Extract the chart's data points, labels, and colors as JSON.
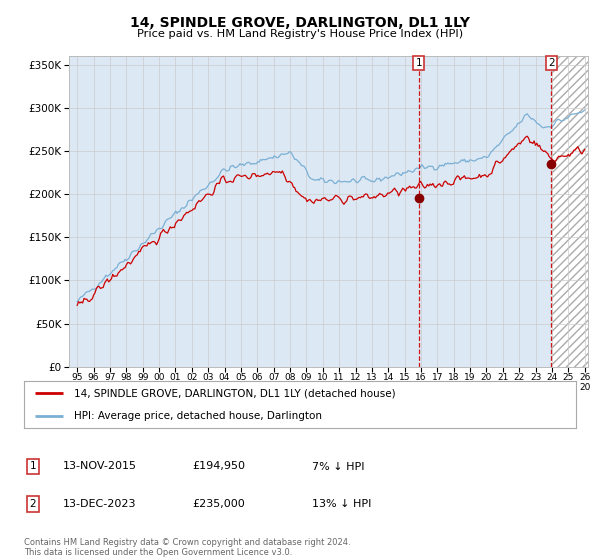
{
  "title": "14, SPINDLE GROVE, DARLINGTON, DL1 1LY",
  "subtitle": "Price paid vs. HM Land Registry's House Price Index (HPI)",
  "ylim": [
    0,
    360000
  ],
  "yticks": [
    0,
    50000,
    100000,
    150000,
    200000,
    250000,
    300000,
    350000
  ],
  "legend_line1": "14, SPINDLE GROVE, DARLINGTON, DL1 1LY (detached house)",
  "legend_line2": "HPI: Average price, detached house, Darlington",
  "annotation1_label": "1",
  "annotation1_date": "13-NOV-2015",
  "annotation1_price": "£194,950",
  "annotation1_hpi": "7% ↓ HPI",
  "annotation2_label": "2",
  "annotation2_date": "13-DEC-2023",
  "annotation2_price": "£235,000",
  "annotation2_hpi": "13% ↓ HPI",
  "footnote": "Contains HM Land Registry data © Crown copyright and database right 2024.\nThis data is licensed under the Open Government Licence v3.0.",
  "line_color_red": "#cc0000",
  "line_color_blue": "#7bafd4",
  "vline_color": "#cc0000",
  "background_color": "#ffffff",
  "grid_color": "#cccccc",
  "shaded_bg": "#dce9f5",
  "sale1_x": 2015.87,
  "sale1_y": 194950,
  "sale2_x": 2023.96,
  "sale2_y": 235000,
  "xlim_left": 1994.5,
  "xlim_right": 2026.2
}
